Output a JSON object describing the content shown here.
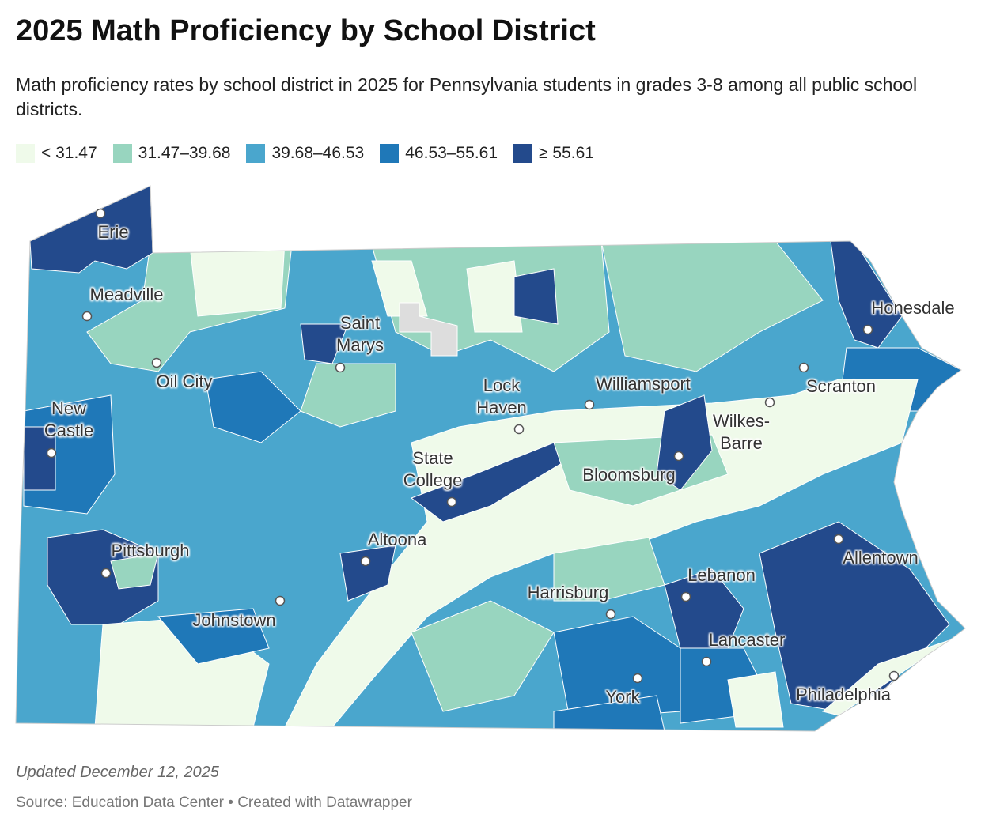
{
  "header": {
    "title": "2025 Math Proficiency by School District",
    "subtitle": "Math proficiency rates by school district in 2025 for Pennsylvania students in grades 3-8 among all public school districts."
  },
  "legend": [
    {
      "label": "< 31.47",
      "color": "#effaea"
    },
    {
      "label": "31.47–39.68",
      "color": "#98d5bf"
    },
    {
      "label": "39.68–46.53",
      "color": "#4aa6cd"
    },
    {
      "label": "46.53–55.61",
      "color": "#1f78b8"
    },
    {
      "label": "≥ 55.61",
      "color": "#234a8c"
    }
  ],
  "cities": [
    "Erie",
    "Meadville",
    "Saint Marys",
    "Oil City",
    "New Castle",
    "Lock Haven",
    "Williamsport",
    "State College",
    "Scranton",
    "Wilkes-Barre",
    "Bloomsburg",
    "Honesdale",
    "Pittsburgh",
    "Altoona",
    "Johnstown",
    "Lebanon",
    "Harrisburg",
    "Allentown",
    "Lancaster",
    "York",
    "Philadelphia"
  ],
  "footer": {
    "updated": "Updated December 12, 2025",
    "source": "Source: Education Data Center • Created with Datawrapper"
  }
}
